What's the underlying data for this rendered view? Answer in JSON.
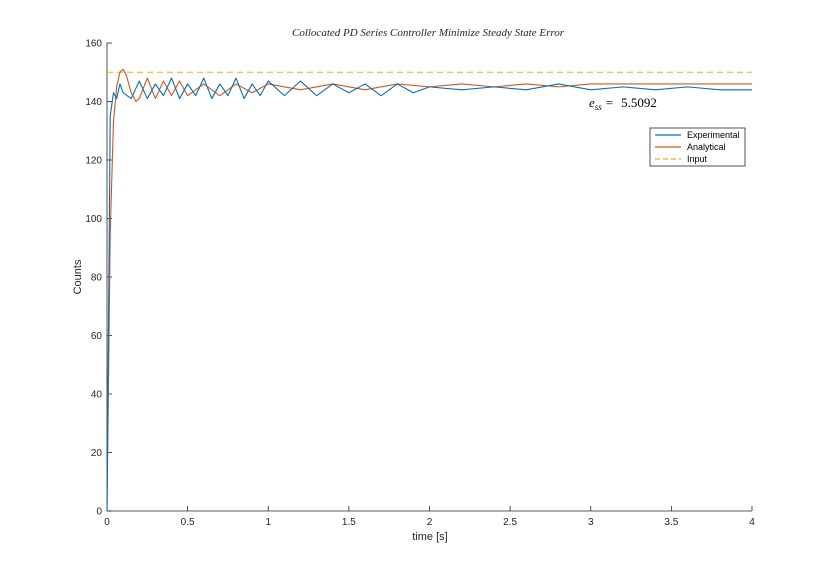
{
  "chart_data": {
    "type": "line",
    "title": "Collocated PD Series Controller Minimize Steady State Error",
    "xlabel": "time [s]",
    "ylabel": "Counts",
    "xlim": [
      0,
      4
    ],
    "ylim": [
      0,
      160
    ],
    "xticks": [
      0,
      0.5,
      1,
      1.5,
      2,
      2.5,
      3,
      3.5,
      4
    ],
    "xtick_labels": [
      "0",
      "0.5",
      "1",
      "1.5",
      "2",
      "2.5",
      "3",
      "3.5",
      "4"
    ],
    "yticks": [
      0,
      20,
      40,
      60,
      80,
      100,
      120,
      140,
      160
    ],
    "ytick_labels": [
      "0",
      "20",
      "40",
      "60",
      "80",
      "100",
      "120",
      "140",
      "160"
    ],
    "grid": false,
    "legend_placement": "upper-right",
    "annotation": {
      "symbol": "e",
      "subscript": "ss",
      "operator": "=",
      "value": "5.5092"
    },
    "series": [
      {
        "name": "Experimental",
        "color": "#0072BD",
        "style": "solid",
        "x": [
          0,
          0.02,
          0.04,
          0.06,
          0.08,
          0.1,
          0.15,
          0.2,
          0.25,
          0.3,
          0.35,
          0.4,
          0.45,
          0.5,
          0.55,
          0.6,
          0.65,
          0.7,
          0.75,
          0.8,
          0.85,
          0.9,
          0.95,
          1.0,
          1.1,
          1.2,
          1.3,
          1.4,
          1.5,
          1.6,
          1.7,
          1.8,
          1.9,
          2.0,
          2.2,
          2.4,
          2.6,
          2.8,
          3.0,
          3.2,
          3.4,
          3.6,
          3.8,
          4.0
        ],
        "y": [
          0,
          135,
          143,
          141,
          146,
          143,
          141,
          147,
          141,
          146,
          142,
          148,
          141,
          146,
          142,
          148,
          141,
          146,
          142,
          148,
          141,
          146,
          142,
          147,
          142,
          147,
          142,
          146,
          143,
          146,
          142,
          146,
          143,
          145,
          144,
          145,
          144,
          146,
          144,
          145,
          144,
          145,
          144,
          144
        ]
      },
      {
        "name": "Analytical",
        "color": "#D95319",
        "style": "solid",
        "x": [
          0,
          0.02,
          0.04,
          0.06,
          0.08,
          0.1,
          0.12,
          0.15,
          0.18,
          0.2,
          0.25,
          0.3,
          0.35,
          0.4,
          0.45,
          0.5,
          0.6,
          0.7,
          0.8,
          0.9,
          1.0,
          1.2,
          1.4,
          1.6,
          1.8,
          2.0,
          2.2,
          2.4,
          2.6,
          2.8,
          3.0,
          3.5,
          4.0
        ],
        "y": [
          0,
          95,
          133,
          145,
          150,
          151,
          149,
          143,
          140,
          141,
          148,
          141,
          147,
          142,
          147,
          142,
          146,
          142,
          146,
          143,
          146,
          144,
          146,
          144,
          146,
          145,
          146,
          145,
          146,
          145,
          146,
          146,
          146
        ]
      },
      {
        "name": "Input",
        "color": "#EDB120",
        "style": "dashed",
        "x": [
          0,
          4
        ],
        "y": [
          150,
          150
        ]
      }
    ]
  }
}
